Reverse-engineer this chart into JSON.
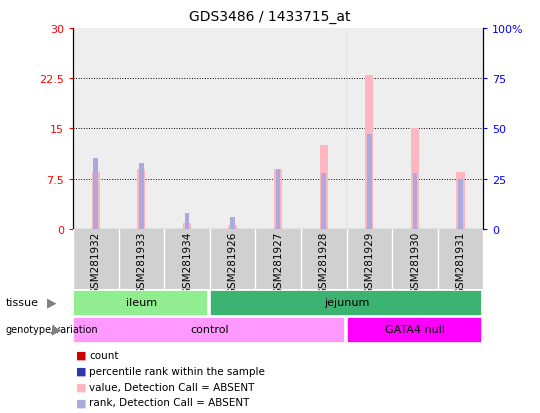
{
  "title": "GDS3486 / 1433715_at",
  "samples": [
    "GSM281932",
    "GSM281933",
    "GSM281934",
    "GSM281926",
    "GSM281927",
    "GSM281928",
    "GSM281929",
    "GSM281930",
    "GSM281931"
  ],
  "count_values": [
    8.5,
    9.0,
    0.8,
    0.5,
    9.0,
    12.5,
    23.0,
    15.0,
    8.5
  ],
  "rank_values_pct": [
    35,
    33,
    8,
    6,
    30,
    28,
    47,
    28,
    25
  ],
  "left_yticks": [
    0,
    7.5,
    15,
    22.5,
    30
  ],
  "right_yticks": [
    0,
    25,
    50,
    75,
    100
  ],
  "right_yticklabels": [
    "0",
    "25",
    "50",
    "75",
    "100%"
  ],
  "ylim_left": [
    0,
    30
  ],
  "ylim_right": [
    0,
    100
  ],
  "tissue_groups": [
    {
      "label": "ileum",
      "start": 0,
      "end": 3,
      "color": "#90EE90"
    },
    {
      "label": "jejunum",
      "start": 3,
      "end": 9,
      "color": "#3CB371"
    }
  ],
  "genotype_groups": [
    {
      "label": "control",
      "start": 0,
      "end": 6,
      "color": "#FF99FF"
    },
    {
      "label": "GATA4 null",
      "start": 6,
      "end": 9,
      "color": "#FF00FF"
    }
  ],
  "bar_color_absent": "#FFB6C1",
  "rank_color_absent": "#AAAADD",
  "bar_color_present": "#CC0000",
  "rank_color_present": "#3333AA",
  "bg_color": "#FFFFFF",
  "cell_bg_color": "#D0D0D0",
  "legend_items": [
    {
      "label": "count",
      "color": "#CC0000"
    },
    {
      "label": "percentile rank within the sample",
      "color": "#3333AA"
    },
    {
      "label": "value, Detection Call = ABSENT",
      "color": "#FFB6C1"
    },
    {
      "label": "rank, Detection Call = ABSENT",
      "color": "#AAAADD"
    }
  ]
}
